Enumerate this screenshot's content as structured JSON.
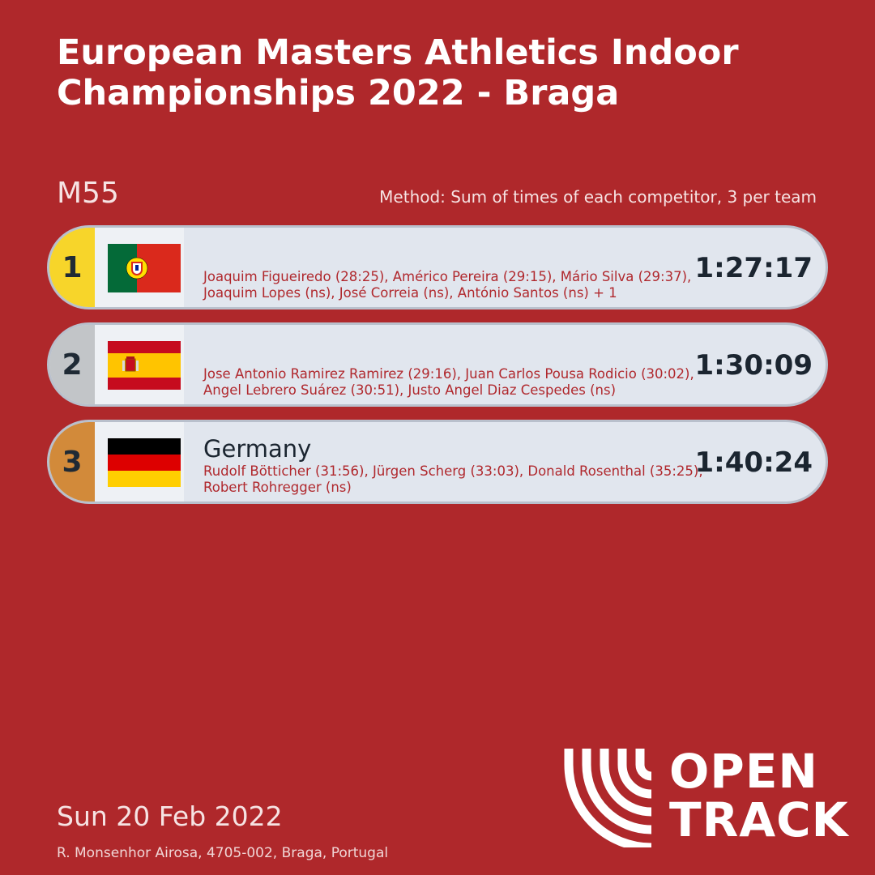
{
  "header": {
    "title_line1": "European Masters Athletics Indoor",
    "title_line2": "Championships 2022 - Braga"
  },
  "category": "M55",
  "method": "Method: Sum of times of each competitor, 3 per team",
  "results": [
    {
      "rank": "1",
      "flag_icon": "portugal-flag-icon",
      "team": "",
      "athletes": "Joaquim Figueiredo (28:25), Américo Pereira (29:15), Mário Silva (29:37), Joaquim Lopes (ns), José Correia (ns), António Santos (ns) + 1",
      "time": "1:27:17",
      "rank_color": "#f7d52a"
    },
    {
      "rank": "2",
      "flag_icon": "spain-flag-icon",
      "team": "",
      "athletes": "Jose Antonio Ramirez Ramirez (29:16), Juan Carlos Pousa Rodicio (30:02), Angel Lebrero Suárez (30:51), Justo Angel Diaz Cespedes (ns)",
      "time": "1:30:09",
      "rank_color": "#c2c5c8"
    },
    {
      "rank": "3",
      "flag_icon": "germany-flag-icon",
      "team": "Germany",
      "athletes": "Rudolf Bötticher (31:56), Jürgen Scherg (33:03), Donald Rosenthal (35:25), Robert Rohregger (ns)",
      "time": "1:40:24",
      "rank_color": "#d28a3a"
    }
  ],
  "footer": {
    "date": "Sun 20 Feb 2022",
    "address": "R. Monsenhor Airosa, 4705-002, Braga, Portugal",
    "logo_line1": "OPEN",
    "logo_line2": "TRACK"
  },
  "colors": {
    "background": "#af282b",
    "row_background": "#e1e6ee",
    "athlete_text": "#b0282d"
  }
}
